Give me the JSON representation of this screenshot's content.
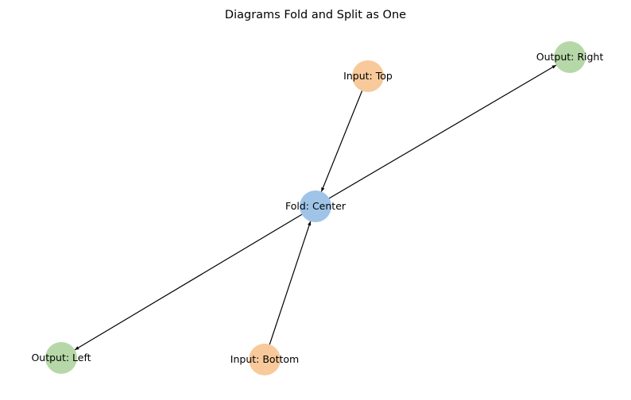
{
  "diagram": {
    "title": "Diagrams Fold and Split as One",
    "nodes": [
      {
        "id": "top",
        "label": "Input: Top",
        "color": "#f8c99b"
      },
      {
        "id": "right",
        "label": "Output: Right",
        "color": "#b6d8a8"
      },
      {
        "id": "center",
        "label": "Fold: Center",
        "color": "#9fc4e8"
      },
      {
        "id": "left",
        "label": "Output: Left",
        "color": "#b6d8a8"
      },
      {
        "id": "bottom",
        "label": "Input: Bottom",
        "color": "#f8c99b"
      }
    ],
    "edges": [
      {
        "from": "top",
        "to": "center",
        "directed": true
      },
      {
        "from": "bottom",
        "to": "center",
        "directed": true
      },
      {
        "from": "center",
        "to": "right",
        "directed": true
      },
      {
        "from": "center",
        "to": "left",
        "directed": true
      }
    ]
  }
}
